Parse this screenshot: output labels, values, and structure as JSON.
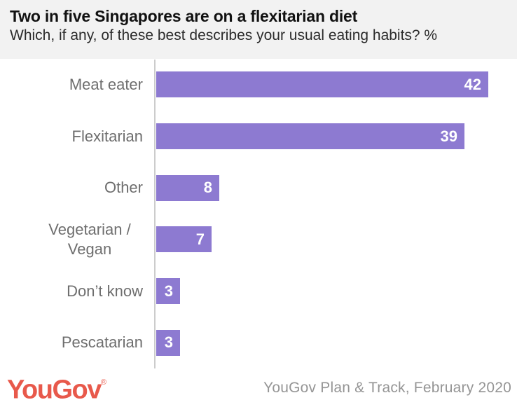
{
  "header": {
    "title": "Two in five Singapores are on a flexitarian diet",
    "subtitle": "Which, if any, of these best describes your usual eating habits? %"
  },
  "chart_data": {
    "type": "bar",
    "orientation": "horizontal",
    "title": "Two in five Singapores are on a flexitarian diet",
    "subtitle": "Which, if any, of these best describes your usual eating habits? %",
    "categories": [
      "Meat eater",
      "Flexitarian",
      "Other",
      "Vegetarian / Vegan",
      "Don’t know",
      "Pescatarian"
    ],
    "values": [
      42,
      39,
      8,
      7,
      3,
      3
    ],
    "unit": "%",
    "xlim": [
      0,
      45.7
    ],
    "grid": false,
    "data_labels": "inside-end",
    "colors": {
      "bar": "#8d7ad1",
      "value_label": "#ffffff",
      "category_label": "#6e6e6e",
      "axis_line": "#cccccc",
      "header_background": "#f2f2f2"
    }
  },
  "footer": {
    "logo_text": "YouGov",
    "registered_mark": "®",
    "logo_color": "#e8594b",
    "source": "YouGov Plan & Track, February 2020"
  }
}
